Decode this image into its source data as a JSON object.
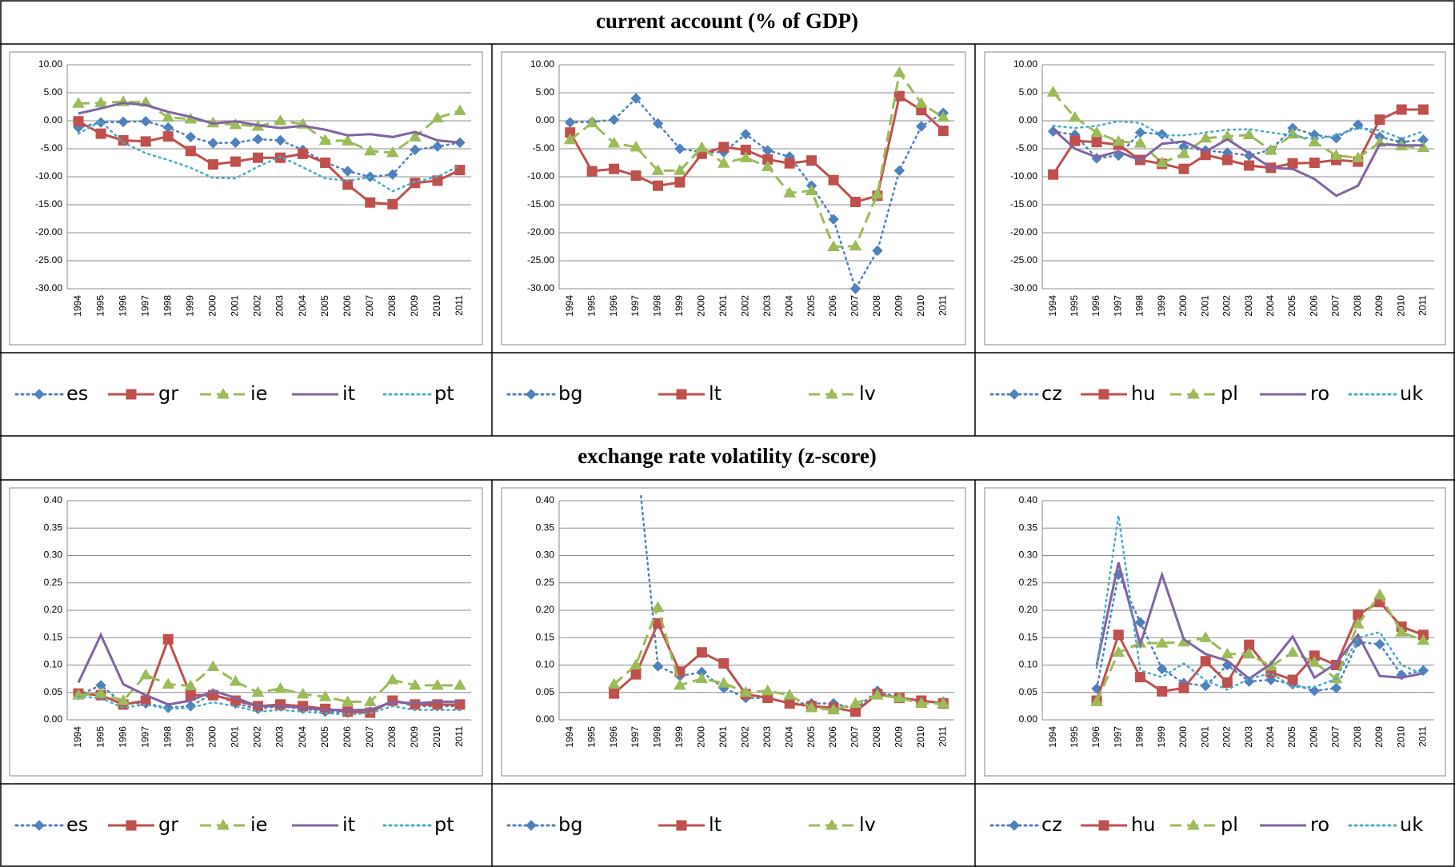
{
  "sections": [
    "current account (% of GDP)",
    "exchange rate volatility (z-score)"
  ],
  "chart_data": [
    {
      "type": "line",
      "categories": [
        "1994",
        "1995",
        "1996",
        "1997",
        "1998",
        "1999",
        "2000",
        "2001",
        "2002",
        "2003",
        "2004",
        "2005",
        "2006",
        "2007",
        "2008",
        "2009",
        "2010",
        "2011"
      ],
      "ylim": [
        -30,
        10
      ],
      "yticks": [
        {
          "value": -30,
          "label": "-30.00"
        },
        {
          "value": -25,
          "label": "-25.00"
        },
        {
          "value": -20,
          "label": "-20.00"
        },
        {
          "value": -15,
          "label": "-15.00"
        },
        {
          "value": -10,
          "label": "-10.00"
        },
        {
          "value": -5,
          "label": "-5.00"
        },
        {
          "value": 0,
          "label": "0.00"
        },
        {
          "value": 5,
          "label": "5.00"
        },
        {
          "value": 10,
          "label": "10.00"
        }
      ],
      "grid": true,
      "series": [
        {
          "name": "es",
          "color": "#4f81bd",
          "style": "dotted",
          "marker": "diamond",
          "values": [
            -1.2,
            -0.3,
            -0.2,
            -0.1,
            -1.2,
            -2.9,
            -4.0,
            -3.9,
            -3.3,
            -3.5,
            -5.2,
            -7.4,
            -9.0,
            -10.0,
            -9.6,
            -5.2,
            -4.6,
            -3.9
          ]
        },
        {
          "name": "gr",
          "color": "#c0504d",
          "style": "solid",
          "marker": "square",
          "values": [
            -0.1,
            -2.3,
            -3.5,
            -3.7,
            -2.8,
            -5.4,
            -7.8,
            -7.3,
            -6.6,
            -6.6,
            -5.9,
            -7.5,
            -11.4,
            -14.6,
            -14.9,
            -11.1,
            -10.7,
            -8.8
          ]
        },
        {
          "name": "ie",
          "color": "#9bbb59",
          "style": "dashed",
          "marker": "triangle",
          "values": [
            3.1,
            3.2,
            3.4,
            3.3,
            0.6,
            0.3,
            -0.4,
            -0.7,
            -1.0,
            0.0,
            -0.6,
            -3.5,
            -3.6,
            -5.4,
            -5.7,
            -2.9,
            0.5,
            1.8
          ]
        },
        {
          "name": "it",
          "color": "#8064a2",
          "style": "solid",
          "marker": "none",
          "values": [
            1.3,
            2.2,
            3.2,
            2.8,
            1.6,
            0.7,
            -0.5,
            -0.1,
            -0.8,
            -1.3,
            -0.9,
            -1.6,
            -2.6,
            -2.4,
            -2.9,
            -2.0,
            -3.5,
            -3.9
          ]
        },
        {
          "name": "pt",
          "color": "#4bacc6",
          "style": "dotted",
          "marker": "none",
          "values": [
            -2.3,
            -0.1,
            -3.9,
            -5.8,
            -7.0,
            -8.4,
            -10.2,
            -10.3,
            -8.2,
            -6.4,
            -8.3,
            -10.3,
            -10.7,
            -10.1,
            -12.6,
            -10.9,
            -10.0,
            -8.0
          ]
        }
      ]
    },
    {
      "type": "line",
      "categories": [
        "1994",
        "1995",
        "1996",
        "1997",
        "1998",
        "1999",
        "2000",
        "2001",
        "2002",
        "2003",
        "2004",
        "2005",
        "2006",
        "2007",
        "2008",
        "2009",
        "2010",
        "2011"
      ],
      "ylim": [
        -30,
        10
      ],
      "yticks": [
        {
          "value": -30,
          "label": "-30.00"
        },
        {
          "value": -25,
          "label": "-25.00"
        },
        {
          "value": -20,
          "label": "-20.00"
        },
        {
          "value": -15,
          "label": "-15.00"
        },
        {
          "value": -10,
          "label": "-10.00"
        },
        {
          "value": -5,
          "label": "-5.00"
        },
        {
          "value": 0,
          "label": "0.00"
        },
        {
          "value": 5,
          "label": "5.00"
        },
        {
          "value": 10,
          "label": "10.00"
        }
      ],
      "grid": true,
      "series": [
        {
          "name": "bg",
          "color": "#4f81bd",
          "style": "dotted",
          "marker": "diamond",
          "values": [
            -0.3,
            -0.2,
            0.2,
            4.0,
            -0.5,
            -5.0,
            -5.6,
            -5.6,
            -2.4,
            -5.3,
            -6.4,
            -11.6,
            -17.6,
            -30.0,
            -23.2,
            -8.9,
            -1.0,
            1.4
          ]
        },
        {
          "name": "lt",
          "color": "#c0504d",
          "style": "solid",
          "marker": "square",
          "values": [
            -2.1,
            -9.0,
            -8.6,
            -9.8,
            -11.6,
            -11.0,
            -5.9,
            -4.7,
            -5.2,
            -6.9,
            -7.6,
            -7.1,
            -10.6,
            -14.5,
            -13.4,
            4.4,
            1.9,
            -1.8
          ]
        },
        {
          "name": "lv",
          "color": "#9bbb59",
          "style": "dashed",
          "marker": "triangle",
          "values": [
            -3.4,
            -0.4,
            -4.0,
            -4.7,
            -8.9,
            -8.9,
            -4.8,
            -7.6,
            -6.6,
            -8.2,
            -12.9,
            -12.5,
            -22.5,
            -22.4,
            -13.1,
            8.6,
            3.1,
            0.6
          ]
        }
      ]
    },
    {
      "type": "line",
      "categories": [
        "1994",
        "1995",
        "1996",
        "1997",
        "1998",
        "1999",
        "2000",
        "2001",
        "2002",
        "2003",
        "2004",
        "2005",
        "2006",
        "2007",
        "2008",
        "2009",
        "2010",
        "2011"
      ],
      "ylim": [
        -30,
        10
      ],
      "yticks": [
        {
          "value": -30,
          "label": "-30.00"
        },
        {
          "value": -25,
          "label": "-25.00"
        },
        {
          "value": -20,
          "label": "-20.00"
        },
        {
          "value": -15,
          "label": "-15.00"
        },
        {
          "value": -10,
          "label": "-10.00"
        },
        {
          "value": -5,
          "label": "-5.00"
        },
        {
          "value": 0,
          "label": "0.00"
        },
        {
          "value": 5,
          "label": "5.00"
        },
        {
          "value": 10,
          "label": "10.00"
        }
      ],
      "grid": true,
      "series": [
        {
          "name": "cz",
          "color": "#4f81bd",
          "style": "dotted",
          "marker": "diamond",
          "values": [
            -1.9,
            -2.5,
            -6.7,
            -6.2,
            -2.1,
            -2.4,
            -4.7,
            -5.3,
            -5.7,
            -6.2,
            -5.2,
            -1.3,
            -2.5,
            -3.1,
            -0.7,
            -2.9,
            -3.8,
            -3.4
          ]
        },
        {
          "name": "hu",
          "color": "#c0504d",
          "style": "solid",
          "marker": "square",
          "values": [
            -9.6,
            -3.6,
            -3.8,
            -4.3,
            -7.0,
            -7.7,
            -8.6,
            -6.1,
            -7.0,
            -8.0,
            -8.4,
            -7.6,
            -7.5,
            -7.0,
            -7.3,
            0.2,
            2.0,
            2.0
          ]
        },
        {
          "name": "pl",
          "color": "#9bbb59",
          "style": "dashed",
          "marker": "triangle",
          "values": [
            5.1,
            0.6,
            -2.1,
            -3.7,
            -4.0,
            -7.5,
            -5.9,
            -3.1,
            -2.8,
            -2.5,
            -5.3,
            -2.4,
            -3.8,
            -6.2,
            -6.6,
            -3.9,
            -4.5,
            -4.8
          ]
        },
        {
          "name": "ro",
          "color": "#8064a2",
          "style": "solid",
          "marker": "none",
          "values": [
            -1.5,
            -5.0,
            -6.5,
            -5.5,
            -7.1,
            -4.1,
            -3.7,
            -5.5,
            -3.3,
            -5.8,
            -8.4,
            -8.6,
            -10.4,
            -13.4,
            -11.6,
            -4.2,
            -4.4,
            -4.4
          ]
        },
        {
          "name": "uk",
          "color": "#4bacc6",
          "style": "dotted",
          "marker": "none",
          "values": [
            -0.9,
            -1.3,
            -0.9,
            -0.1,
            -0.4,
            -2.6,
            -2.6,
            -2.1,
            -1.6,
            -1.5,
            -2.1,
            -2.6,
            -3.3,
            -2.6,
            -1.3,
            -1.7,
            -3.2,
            -1.9
          ]
        }
      ]
    },
    {
      "type": "line",
      "categories": [
        "1994",
        "1995",
        "1996",
        "1997",
        "1998",
        "1999",
        "2000",
        "2001",
        "2002",
        "2003",
        "2004",
        "2005",
        "2006",
        "2007",
        "2008",
        "2009",
        "2010",
        "2011"
      ],
      "ylim": [
        0,
        0.4
      ],
      "yticks": [
        {
          "value": 0,
          "label": "0.00"
        },
        {
          "value": 0.05,
          "label": "0.05"
        },
        {
          "value": 0.1,
          "label": "0.10"
        },
        {
          "value": 0.15,
          "label": "0.15"
        },
        {
          "value": 0.2,
          "label": "0.20"
        },
        {
          "value": 0.25,
          "label": "0.25"
        },
        {
          "value": 0.3,
          "label": "0.30"
        },
        {
          "value": 0.35,
          "label": "0.35"
        },
        {
          "value": 0.4,
          "label": "0.40"
        }
      ],
      "grid": true,
      "series": [
        {
          "name": "es",
          "color": "#4f81bd",
          "style": "dotted",
          "marker": "diamond",
          "values": [
            0.045,
            0.063,
            0.03,
            0.03,
            0.022,
            0.025,
            0.048,
            0.03,
            0.02,
            0.025,
            0.02,
            0.015,
            0.013,
            0.015,
            0.035,
            0.025,
            0.025,
            0.025
          ]
        },
        {
          "name": "gr",
          "color": "#c0504d",
          "style": "solid",
          "marker": "square",
          "values": [
            0.048,
            0.045,
            0.028,
            0.035,
            0.147,
            0.045,
            0.045,
            0.035,
            0.025,
            0.028,
            0.025,
            0.02,
            0.015,
            0.013,
            0.035,
            0.028,
            0.028,
            0.028
          ]
        },
        {
          "name": "ie",
          "color": "#9bbb59",
          "style": "dashed",
          "marker": "triangle",
          "values": [
            0.045,
            0.048,
            0.035,
            0.082,
            0.065,
            0.062,
            0.097,
            0.07,
            0.05,
            0.057,
            0.047,
            0.042,
            0.033,
            0.033,
            0.073,
            0.063,
            0.063,
            0.063
          ]
        },
        {
          "name": "it",
          "color": "#8064a2",
          "style": "solid",
          "marker": "none",
          "values": [
            0.068,
            0.155,
            0.065,
            0.045,
            0.028,
            0.035,
            0.053,
            0.04,
            0.025,
            0.025,
            0.022,
            0.018,
            0.018,
            0.018,
            0.033,
            0.03,
            0.033,
            0.033
          ]
        },
        {
          "name": "pt",
          "color": "#4bacc6",
          "style": "dotted",
          "marker": "none",
          "values": [
            0.042,
            0.04,
            0.022,
            0.028,
            0.02,
            0.022,
            0.032,
            0.025,
            0.015,
            0.018,
            0.015,
            0.012,
            0.01,
            0.012,
            0.025,
            0.018,
            0.018,
            0.018
          ]
        }
      ]
    },
    {
      "type": "line",
      "categories": [
        "1994",
        "1995",
        "1996",
        "1997",
        "1998",
        "1999",
        "2000",
        "2001",
        "2002",
        "2003",
        "2004",
        "2005",
        "2006",
        "2007",
        "2008",
        "2009",
        "2010",
        "2011"
      ],
      "ylim": [
        0,
        0.4
      ],
      "yticks": [
        {
          "value": 0,
          "label": "0.00"
        },
        {
          "value": 0.05,
          "label": "0.05"
        },
        {
          "value": 0.1,
          "label": "0.10"
        },
        {
          "value": 0.15,
          "label": "0.15"
        },
        {
          "value": 0.2,
          "label": "0.20"
        },
        {
          "value": 0.25,
          "label": "0.25"
        },
        {
          "value": 0.3,
          "label": "0.30"
        },
        {
          "value": 0.35,
          "label": "0.35"
        },
        {
          "value": 0.4,
          "label": "0.40"
        }
      ],
      "grid": true,
      "series": [
        {
          "name": "bg",
          "color": "#4f81bd",
          "style": "dotted",
          "marker": "diamond",
          "values": [
            null,
            null,
            null,
            0.5,
            0.098,
            0.08,
            0.087,
            0.058,
            0.04,
            0.04,
            0.03,
            0.03,
            0.03,
            0.02,
            0.053,
            0.04,
            0.033,
            0.033
          ]
        },
        {
          "name": "lt",
          "color": "#c0504d",
          "style": "solid",
          "marker": "square",
          "values": [
            null,
            null,
            0.048,
            0.083,
            0.176,
            0.088,
            0.123,
            0.103,
            0.047,
            0.04,
            0.03,
            0.025,
            0.022,
            0.015,
            0.047,
            0.04,
            0.035,
            0.03
          ]
        },
        {
          "name": "lv",
          "color": "#9bbb59",
          "style": "dashed",
          "marker": "triangle",
          "values": [
            null,
            null,
            0.065,
            0.1,
            0.205,
            0.063,
            0.075,
            0.067,
            0.05,
            0.053,
            0.045,
            0.022,
            0.018,
            0.03,
            0.045,
            0.04,
            0.03,
            0.03
          ]
        }
      ]
    },
    {
      "type": "line",
      "categories": [
        "1994",
        "1995",
        "1996",
        "1997",
        "1998",
        "1999",
        "2000",
        "2001",
        "2002",
        "2003",
        "2004",
        "2005",
        "2006",
        "2007",
        "2008",
        "2009",
        "2010",
        "2011"
      ],
      "ylim": [
        0,
        0.4
      ],
      "yticks": [
        {
          "value": 0,
          "label": "0.00"
        },
        {
          "value": 0.05,
          "label": "0.05"
        },
        {
          "value": 0.1,
          "label": "0.10"
        },
        {
          "value": 0.15,
          "label": "0.15"
        },
        {
          "value": 0.2,
          "label": "0.20"
        },
        {
          "value": 0.25,
          "label": "0.25"
        },
        {
          "value": 0.3,
          "label": "0.30"
        },
        {
          "value": 0.35,
          "label": "0.35"
        },
        {
          "value": 0.4,
          "label": "0.40"
        }
      ],
      "grid": true,
      "series": [
        {
          "name": "cz",
          "color": "#4f81bd",
          "style": "dotted",
          "marker": "diamond",
          "values": [
            null,
            null,
            0.057,
            0.265,
            0.178,
            0.093,
            0.067,
            0.062,
            0.1,
            0.07,
            0.073,
            0.065,
            0.053,
            0.058,
            0.142,
            0.138,
            0.082,
            0.09
          ]
        },
        {
          "name": "hu",
          "color": "#c0504d",
          "style": "solid",
          "marker": "square",
          "values": [
            null,
            null,
            0.035,
            0.155,
            0.078,
            0.052,
            0.058,
            0.107,
            0.068,
            0.137,
            0.087,
            0.073,
            0.117,
            0.1,
            0.192,
            0.215,
            0.17,
            0.155
          ]
        },
        {
          "name": "pl",
          "color": "#9bbb59",
          "style": "dashed",
          "marker": "triangle",
          "values": [
            null,
            null,
            0.033,
            0.123,
            0.14,
            0.14,
            0.142,
            0.15,
            0.12,
            0.12,
            0.098,
            0.123,
            0.105,
            0.075,
            0.175,
            0.228,
            0.16,
            0.145
          ]
        },
        {
          "name": "ro",
          "color": "#8064a2",
          "style": "solid",
          "marker": "none",
          "values": [
            null,
            null,
            0.1,
            0.287,
            0.137,
            0.265,
            0.147,
            0.12,
            0.108,
            0.075,
            0.102,
            0.152,
            0.077,
            0.103,
            0.155,
            0.08,
            0.077,
            0.085
          ]
        },
        {
          "name": "uk",
          "color": "#4bacc6",
          "style": "dotted",
          "marker": "none",
          "values": [
            null,
            null,
            0.095,
            0.373,
            0.09,
            0.078,
            0.103,
            0.072,
            0.055,
            0.075,
            0.085,
            0.06,
            0.06,
            0.075,
            0.15,
            0.16,
            0.1,
            0.083
          ]
        }
      ]
    }
  ]
}
